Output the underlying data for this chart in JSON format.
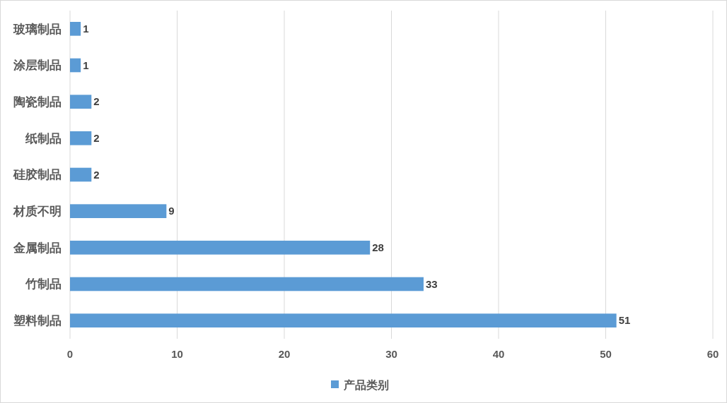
{
  "chart_data": {
    "type": "bar",
    "orientation": "horizontal",
    "categories": [
      "玻璃制品",
      "涂层制品",
      "陶瓷制品",
      "纸制品",
      "硅胶制品",
      "材质不明",
      "金属制品",
      "竹制品",
      "塑料制品"
    ],
    "series": [
      {
        "name": "产品类别",
        "color": "#5b9bd5",
        "values": [
          1,
          1,
          2,
          2,
          2,
          9,
          28,
          33,
          51
        ]
      }
    ],
    "xlim": [
      0,
      60
    ],
    "xticks": [
      0,
      10,
      20,
      30,
      40,
      50,
      60
    ],
    "grid": "x",
    "legend": "bottom",
    "data_labels": true
  }
}
